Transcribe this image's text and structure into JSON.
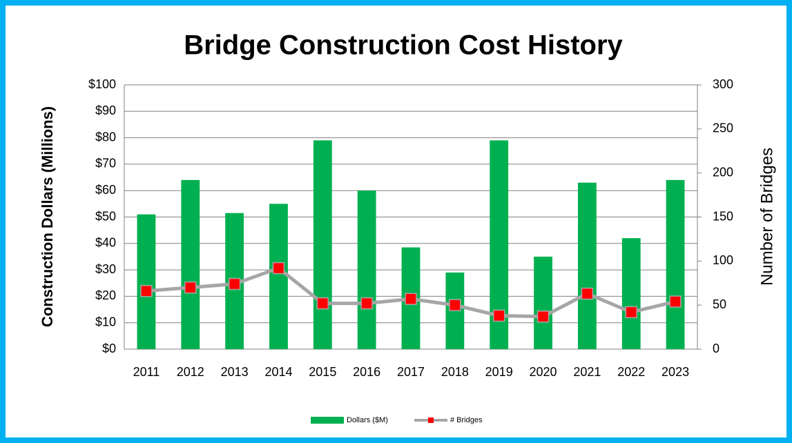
{
  "chart_data": {
    "type": "bar_line",
    "title": "Bridge Construction Cost History",
    "y_label": "Construction Dollars (Millions)",
    "y2_label": "Number of Bridges",
    "categories": [
      "2011",
      "2012",
      "2013",
      "2014",
      "2015",
      "2016",
      "2017",
      "2018",
      "2019",
      "2020",
      "2021",
      "2022",
      "2023"
    ],
    "series": [
      {
        "name": "Dollars ($M)",
        "type": "bar",
        "color": "#00b050",
        "values": [
          51,
          64,
          51.5,
          55,
          79,
          60,
          38.5,
          29,
          79,
          35,
          63,
          42,
          64
        ]
      },
      {
        "name": "# Bridges",
        "type": "line",
        "axis": "y2",
        "color": "#a6a6a6",
        "marker_color": "#ff0000",
        "values": [
          66,
          70,
          74,
          92,
          52,
          52,
          57,
          50,
          38,
          37,
          63,
          42,
          54
        ]
      }
    ],
    "ylim": [
      0,
      100
    ],
    "yticks": [
      {
        "value": 0,
        "label": "$0"
      },
      {
        "value": 10,
        "label": "$10"
      },
      {
        "value": 20,
        "label": "$20"
      },
      {
        "value": 30,
        "label": "$30"
      },
      {
        "value": 40,
        "label": "$40"
      },
      {
        "value": 50,
        "label": "$50"
      },
      {
        "value": 60,
        "label": "$60"
      },
      {
        "value": 70,
        "label": "$70"
      },
      {
        "value": 80,
        "label": "$80"
      },
      {
        "value": 90,
        "label": "$90"
      },
      {
        "value": 100,
        "label": "$100"
      }
    ],
    "y2lim": [
      0,
      300
    ],
    "y2ticks": [
      0,
      50,
      100,
      150,
      200,
      250,
      300
    ],
    "grid": true,
    "legend": "bottom"
  }
}
